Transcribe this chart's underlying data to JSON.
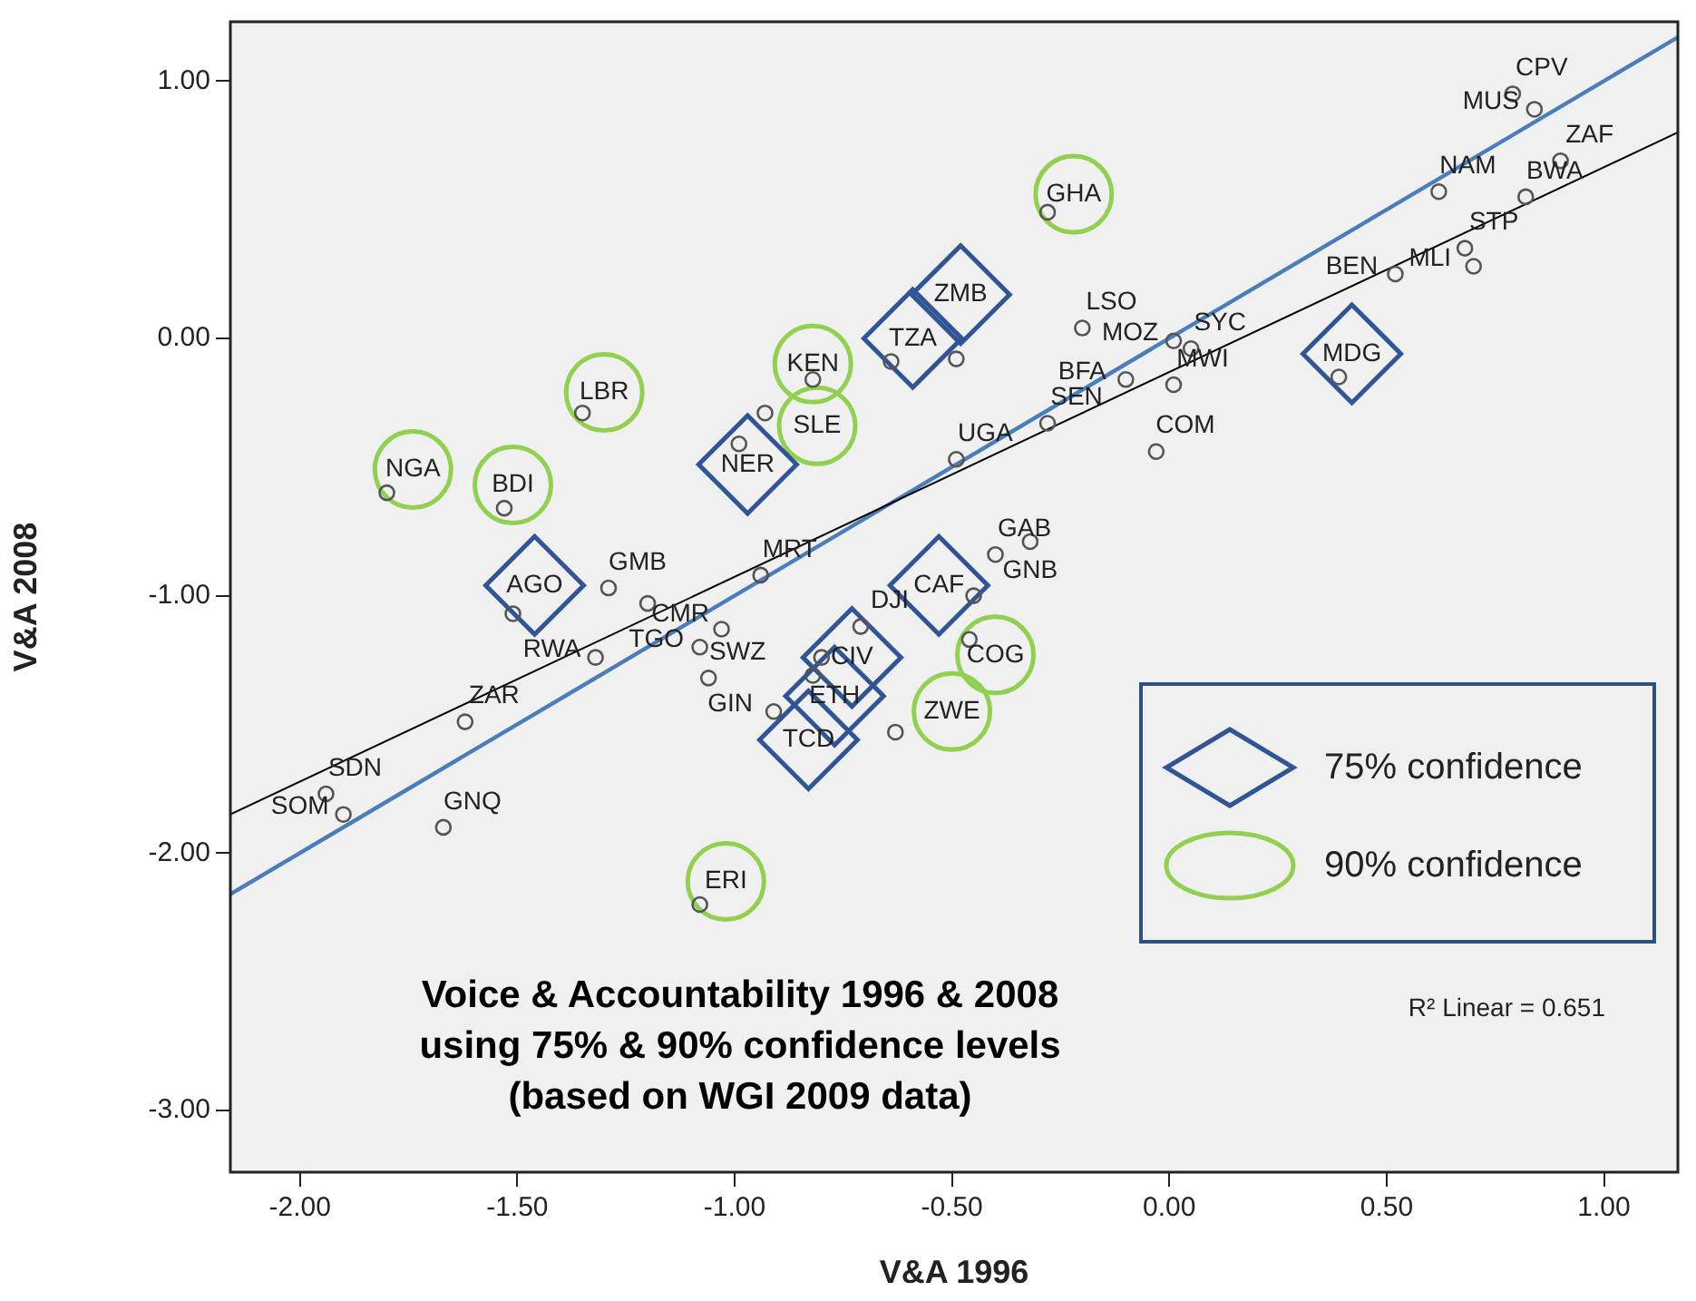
{
  "chart_data": {
    "type": "scatter",
    "title": "Voice & Accountability 1996 & 2008\nusing 75% & 90% confidence levels\n(based on WGI 2009 data)",
    "xlabel": "V&A 1996",
    "ylabel": "V&A 2008",
    "xlim": [
      -2.16,
      1.17
    ],
    "ylim": [
      -3.24,
      1.23
    ],
    "xticks": [
      {
        "value": -2,
        "label": "-2.00"
      },
      {
        "value": -1.5,
        "label": "-1.50"
      },
      {
        "value": -1,
        "label": "-1.00"
      },
      {
        "value": -0.5,
        "label": "-0.50"
      },
      {
        "value": 0,
        "label": "0.00"
      },
      {
        "value": 0.5,
        "label": "0.50"
      },
      {
        "value": 1,
        "label": "1.00"
      }
    ],
    "yticks": [
      {
        "value": -3,
        "label": "-3.00"
      },
      {
        "value": -2,
        "label": "-2.00"
      },
      {
        "value": -1,
        "label": "-1.00"
      },
      {
        "value": 0,
        "label": "0.00"
      },
      {
        "value": 1,
        "label": "1.00"
      }
    ],
    "grid": false,
    "legend": "bottom right",
    "marker": "circle",
    "series": [
      {
        "color": "#555555",
        "x": [
          0.79,
          0.84,
          0.9,
          0.62,
          0.82,
          0.68,
          0.7,
          0.52,
          0.39,
          -0.28,
          -0.2,
          0.01,
          0.05,
          -0.1,
          0.01,
          -0.28,
          -0.03,
          -0.49,
          -0.64,
          -0.49,
          -0.82,
          -0.93,
          -0.99,
          -1.35,
          -1.8,
          -1.53,
          -0.32,
          -0.4,
          -0.45,
          -0.94,
          -1.29,
          -1.2,
          -1.51,
          -1.32,
          -1.03,
          -1.08,
          -1.06,
          -0.71,
          -0.46,
          -0.8,
          -0.82,
          -0.91,
          -0.63,
          -1.62,
          -1.94,
          -1.9,
          -1.67,
          -1.08
        ],
        "values": [
          0.95,
          0.89,
          0.69,
          0.57,
          0.55,
          0.35,
          0.28,
          0.25,
          -0.15,
          0.49,
          0.04,
          -0.01,
          -0.04,
          -0.16,
          -0.18,
          -0.33,
          -0.44,
          -0.47,
          -0.09,
          -0.08,
          -0.16,
          -0.29,
          -0.41,
          -0.29,
          -0.6,
          -0.66,
          -0.79,
          -0.84,
          -1.0,
          -0.92,
          -0.97,
          -1.03,
          -1.07,
          -1.24,
          -1.13,
          -1.2,
          -1.32,
          -1.12,
          -1.17,
          -1.24,
          -1.31,
          -1.45,
          -1.53,
          -1.49,
          -1.77,
          -1.85,
          -1.9,
          -2.2
        ]
      },
      {
        "name": "75% confidence",
        "color": "#2f5597",
        "marker": "diamond",
        "x": [
          -0.48,
          -0.59,
          0.42,
          -0.97,
          -1.46,
          -0.53,
          -0.73,
          -0.77,
          -0.83
        ],
        "values": [
          0.17,
          0.0,
          -0.06,
          -0.49,
          -0.96,
          -0.96,
          -1.24,
          -1.39,
          -1.56
        ]
      },
      {
        "name": "90% confidence",
        "color": "#92d050",
        "marker": "circle",
        "x": [
          -0.22,
          -0.82,
          -0.81,
          -1.3,
          -1.74,
          -1.51,
          -0.4,
          -0.5,
          -1.02
        ],
        "values": [
          0.56,
          -0.1,
          -0.34,
          -0.21,
          -0.51,
          -0.57,
          -1.23,
          -1.45,
          -2.11
        ]
      },
      {
        "type": "line",
        "color": "#000000",
        "marker": "none",
        "x": [
          -2.16,
          1.17
        ],
        "values": [
          -1.85,
          0.8
        ]
      },
      {
        "type": "line",
        "color": "#4a7ebb",
        "marker": "none",
        "x": [
          -2.16,
          1.17
        ],
        "values": [
          -2.16,
          1.17
        ]
      }
    ],
    "annotations": [
      "R² Linear = 0.651",
      {
        "text": "CPV",
        "x": 0.79,
        "y": 0.95
      },
      {
        "text": "MUS",
        "x": 0.84,
        "y": 0.89
      },
      {
        "text": "ZAF",
        "x": 0.9,
        "y": 0.69
      },
      {
        "text": "NAM",
        "x": 0.62,
        "y": 0.57
      },
      {
        "text": "BWA",
        "x": 0.82,
        "y": 0.55
      },
      {
        "text": "STP",
        "x": 0.68,
        "y": 0.35
      },
      {
        "text": "MLI",
        "x": 0.7,
        "y": 0.28
      },
      {
        "text": "BEN",
        "x": 0.52,
        "y": 0.25
      },
      {
        "text": "MDG",
        "x": 0.42,
        "y": -0.06
      },
      {
        "text": "SYC",
        "x": 0.05,
        "y": -0.04
      },
      {
        "text": "MOZ",
        "x": 0.01,
        "y": -0.01
      },
      {
        "text": "LSO",
        "x": -0.2,
        "y": 0.04
      },
      {
        "text": "MWI",
        "x": 0.01,
        "y": -0.18
      },
      {
        "text": "SEN",
        "x": -0.28,
        "y": -0.33
      },
      {
        "text": "COM",
        "x": -0.03,
        "y": -0.44
      },
      {
        "text": "BFA",
        "x": -0.1,
        "y": -0.16
      },
      {
        "text": "UGA",
        "x": -0.49,
        "y": -0.47
      },
      {
        "text": "ZMB",
        "x": -0.48,
        "y": 0.17
      },
      {
        "text": "TZA",
        "x": -0.59,
        "y": 0.0
      },
      {
        "text": "KEN",
        "x": -0.82,
        "y": -0.1
      },
      {
        "text": "GHA",
        "x": -0.22,
        "y": 0.56
      },
      {
        "text": "SLE",
        "x": -0.81,
        "y": -0.34
      },
      {
        "text": "NER",
        "x": -0.97,
        "y": -0.49
      },
      {
        "text": "LBR",
        "x": -1.3,
        "y": -0.21
      },
      {
        "text": "NGA",
        "x": -1.74,
        "y": -0.51
      },
      {
        "text": "BDI",
        "x": -1.51,
        "y": -0.57
      },
      {
        "text": "MRT",
        "x": -0.94,
        "y": -0.92
      },
      {
        "text": "GMB",
        "x": -1.29,
        "y": -0.97
      },
      {
        "text": "CMR",
        "x": -1.2,
        "y": -1.03
      },
      {
        "text": "AGO",
        "x": -1.46,
        "y": -0.96
      },
      {
        "text": "RWA",
        "x": -1.32,
        "y": -1.24
      },
      {
        "text": "ZAR",
        "x": -1.62,
        "y": -1.49
      },
      {
        "text": "SWZ",
        "x": -1.06,
        "y": -1.32
      },
      {
        "text": "TGO",
        "x": -1.08,
        "y": -1.2
      },
      {
        "text": "GIN",
        "x": -0.91,
        "y": -1.45
      },
      {
        "text": "CIV",
        "x": -0.73,
        "y": -1.24
      },
      {
        "text": "ETH",
        "x": -0.77,
        "y": -1.39
      },
      {
        "text": "TCD",
        "x": -0.83,
        "y": -1.56
      },
      {
        "text": "DJI",
        "x": -0.71,
        "y": -1.12
      },
      {
        "text": "CAF",
        "x": -0.53,
        "y": -0.96
      },
      {
        "text": "GAB",
        "x": -0.4,
        "y": -0.84
      },
      {
        "text": "GNB",
        "x": -0.32,
        "y": -0.79
      },
      {
        "text": "COG",
        "x": -0.4,
        "y": -1.23
      },
      {
        "text": "ZWE",
        "x": -0.5,
        "y": -1.45
      },
      {
        "text": "SDN",
        "x": -1.94,
        "y": -1.77
      },
      {
        "text": "SOM",
        "x": -1.9,
        "y": -1.85
      },
      {
        "text": "GNQ",
        "x": -1.67,
        "y": -1.9
      },
      {
        "text": "ERI",
        "x": -1.02,
        "y": -2.11
      }
    ]
  }
}
